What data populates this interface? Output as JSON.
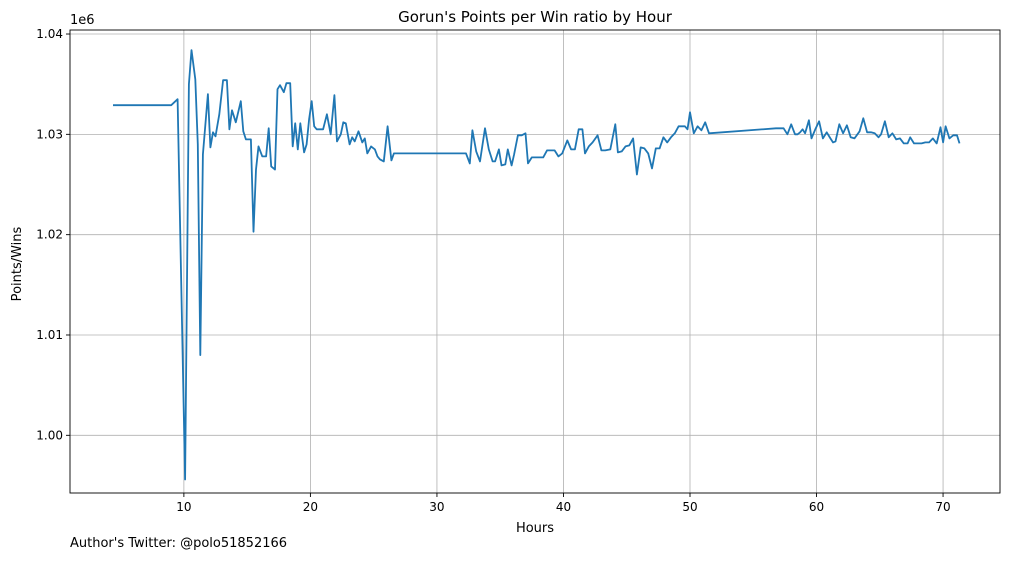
{
  "chart_data": {
    "type": "line",
    "title": "Gorun's Points per Win ratio by Hour",
    "xlabel": "Hours",
    "ylabel": "Points/Wins",
    "y_offset_label": "1e6",
    "xlim": [
      1,
      74.5
    ],
    "ylim": [
      0.99425,
      1.0404
    ],
    "x_ticks": [
      10,
      20,
      30,
      40,
      50,
      60,
      70
    ],
    "x_tick_labels": [
      "10",
      "20",
      "30",
      "40",
      "50",
      "60",
      "70"
    ],
    "y_ticks": [
      1.0,
      1.01,
      1.02,
      1.03,
      1.04
    ],
    "y_tick_labels": [
      "1.00",
      "1.01",
      "1.02",
      "1.03",
      "1.04"
    ],
    "grid": true,
    "line_color": "#1f77b4",
    "series": [
      {
        "x": [
          4.4,
          9.0,
          9.5,
          10.1,
          10.4,
          10.6,
          10.9,
          11.1,
          11.3,
          11.5,
          11.9,
          12.1,
          12.3,
          12.5,
          12.8,
          13.1,
          13.4,
          13.6,
          13.8,
          14.1,
          14.5,
          14.7,
          14.9,
          15.3,
          15.5,
          15.7,
          15.9,
          16.2,
          16.5,
          16.7,
          16.9,
          17.2,
          17.4,
          17.6,
          17.9,
          18.1,
          18.4,
          18.6,
          18.8,
          19.0,
          19.2,
          19.5,
          19.7,
          19.9,
          20.1,
          20.3,
          20.5,
          21.0,
          21.3,
          21.6,
          21.9,
          22.1,
          22.4,
          22.6,
          22.8,
          23.1,
          23.3,
          23.5,
          23.8,
          24.1,
          24.3,
          24.5,
          24.8,
          25.1,
          25.3,
          25.5,
          25.8,
          26.1,
          26.4,
          26.6,
          26.8,
          27.0,
          27.3,
          32.3,
          32.6,
          32.8,
          33.1,
          33.4,
          33.8,
          34.1,
          34.4,
          34.6,
          34.9,
          35.1,
          35.4,
          35.6,
          35.9,
          36.1,
          36.4,
          36.7,
          37.0,
          37.2,
          37.5,
          37.8,
          38.1,
          38.4,
          38.7,
          39.0,
          39.3,
          39.6,
          39.9,
          40.3,
          40.6,
          40.9,
          41.2,
          41.5,
          41.7,
          42.0,
          42.3,
          42.7,
          43.0,
          43.3,
          43.7,
          44.1,
          44.3,
          44.6,
          44.9,
          45.2,
          45.5,
          45.8,
          46.1,
          46.4,
          46.7,
          47.0,
          47.3,
          47.6,
          47.9,
          48.2,
          48.5,
          48.8,
          49.1,
          49.4,
          49.6,
          49.8,
          50.0,
          50.3,
          50.6,
          50.9,
          51.2,
          51.5,
          56.8,
          57.1,
          57.4,
          57.7,
          58.0,
          58.3,
          58.5,
          58.7,
          58.9,
          59.1,
          59.4,
          59.6,
          59.9,
          60.2,
          60.5,
          60.8,
          61.1,
          61.3,
          61.5,
          61.8,
          62.1,
          62.4,
          62.7,
          63.0,
          63.4,
          63.7,
          64.0,
          64.3,
          64.6,
          64.9,
          65.1,
          65.4,
          65.7,
          66.0,
          66.3,
          66.6,
          66.9,
          67.2,
          67.4,
          67.7,
          68.0,
          68.3,
          68.6,
          68.9,
          69.2,
          69.5,
          69.8,
          70.0,
          70.2,
          70.5,
          70.8,
          71.1,
          71.3
        ],
        "values": [
          1.0329,
          1.0329,
          1.0335,
          0.9956,
          1.035,
          1.0384,
          1.0355,
          1.029,
          1.008,
          1.028,
          1.034,
          1.0287,
          1.0302,
          1.0298,
          1.032,
          1.0354,
          1.0354,
          1.0305,
          1.0324,
          1.0312,
          1.0333,
          1.0303,
          1.0295,
          1.0295,
          1.0203,
          1.0265,
          1.0288,
          1.0278,
          1.0278,
          1.0306,
          1.0268,
          1.0265,
          1.0345,
          1.0349,
          1.0342,
          1.0351,
          1.0351,
          1.0288,
          1.0311,
          1.0285,
          1.0311,
          1.0282,
          1.029,
          1.0315,
          1.0333,
          1.0308,
          1.0305,
          1.0305,
          1.032,
          1.03,
          1.0339,
          1.0293,
          1.03,
          1.0312,
          1.0311,
          1.029,
          1.0297,
          1.0293,
          1.0303,
          1.0292,
          1.0296,
          1.0281,
          1.0288,
          1.0285,
          1.0278,
          1.0275,
          1.0273,
          1.0308,
          1.0274,
          1.0281,
          1.0281,
          1.0281,
          1.0281,
          1.0281,
          1.0271,
          1.0304,
          1.0283,
          1.0273,
          1.0306,
          1.0285,
          1.0273,
          1.0273,
          1.0285,
          1.0269,
          1.027,
          1.0285,
          1.0269,
          1.028,
          1.0299,
          1.0299,
          1.0301,
          1.0271,
          1.0277,
          1.0277,
          1.0277,
          1.0277,
          1.0284,
          1.0284,
          1.0284,
          1.0278,
          1.0281,
          1.0294,
          1.0285,
          1.0285,
          1.0305,
          1.0305,
          1.0281,
          1.0288,
          1.0292,
          1.0299,
          1.0284,
          1.0284,
          1.0285,
          1.031,
          1.0282,
          1.0283,
          1.0288,
          1.0289,
          1.0296,
          1.026,
          1.0287,
          1.0286,
          1.0281,
          1.0266,
          1.0286,
          1.0286,
          1.0297,
          1.0292,
          1.0297,
          1.0301,
          1.0308,
          1.0308,
          1.0308,
          1.0305,
          1.0322,
          1.0301,
          1.0308,
          1.0304,
          1.0312,
          1.0301,
          1.0306,
          1.0306,
          1.0306,
          1.03,
          1.031,
          1.03,
          1.03,
          1.0302,
          1.0305,
          1.0301,
          1.0314,
          1.0296,
          1.0305,
          1.0313,
          1.0296,
          1.0302,
          1.0296,
          1.0292,
          1.0293,
          1.031,
          1.0301,
          1.0309,
          1.0297,
          1.0296,
          1.0303,
          1.0316,
          1.0302,
          1.0302,
          1.0301,
          1.0297,
          1.03,
          1.0313,
          1.0297,
          1.0301,
          1.0295,
          1.0296,
          1.0291,
          1.0291,
          1.0297,
          1.0291,
          1.0291,
          1.0291,
          1.0292,
          1.0292,
          1.0296,
          1.0291,
          1.0307,
          1.0292,
          1.0308,
          1.0296,
          1.0299,
          1.0299,
          1.0291
        ]
      }
    ]
  },
  "footer": {
    "credit": "Author's Twitter: @polo51852166"
  }
}
